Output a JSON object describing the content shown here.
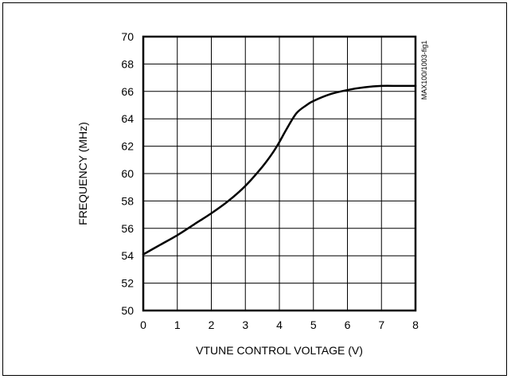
{
  "chart_data": {
    "type": "line",
    "xlabel": "VTUNE CONTROL VOLTAGE (V)",
    "ylabel": "FREQUENCY (MHz)",
    "figure_id": "MAX100/1003-fig1",
    "xlim": [
      0,
      8
    ],
    "ylim": [
      50,
      70
    ],
    "xticks": [
      "0",
      "1",
      "2",
      "3",
      "4",
      "5",
      "6",
      "7",
      "8"
    ],
    "yticks": [
      "50",
      "52",
      "54",
      "56",
      "58",
      "60",
      "62",
      "64",
      "66",
      "68",
      "70"
    ],
    "grid": true,
    "series": [
      {
        "color": "#000000",
        "x": [
          0,
          0.5,
          1,
          1.5,
          2,
          2.5,
          3,
          3.5,
          3.8,
          4,
          4.2,
          4.5,
          4.8,
          5,
          5.5,
          6,
          6.5,
          7,
          7.5,
          8
        ],
        "y": [
          54.1,
          54.8,
          55.5,
          56.3,
          57.1,
          58.0,
          59.1,
          60.5,
          61.5,
          62.3,
          63.2,
          64.4,
          65.0,
          65.3,
          65.8,
          66.1,
          66.3,
          66.4,
          66.4,
          66.4
        ]
      }
    ]
  }
}
